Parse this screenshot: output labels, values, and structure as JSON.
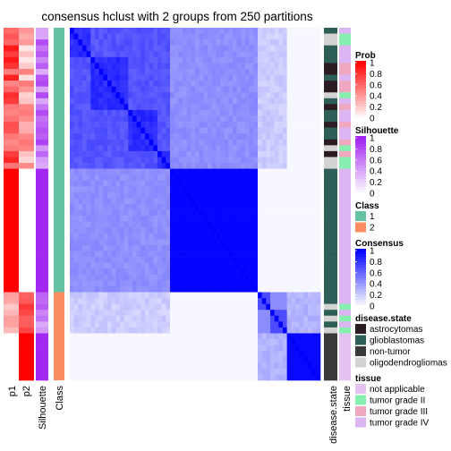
{
  "chart_data": {
    "type": "heatmap",
    "title": "consensus hclust with 2 groups from 250 partitions",
    "columns": [
      "p1",
      "p2",
      "Silhouette",
      "Class",
      "disease.state",
      "tissue"
    ],
    "groups": [
      {
        "class": "1",
        "share_percent": 75
      },
      {
        "class": "2",
        "share_percent": 25
      }
    ],
    "legends": [
      {
        "title": "Prob",
        "type": "gradient",
        "ticks": [
          "1",
          "0.8",
          "0.6",
          "0.4",
          "0.2",
          "0"
        ],
        "colors": [
          "#ff0000",
          "#ffffff"
        ]
      },
      {
        "title": "Silhouette",
        "type": "gradient",
        "ticks": [
          "1",
          "0.8",
          "0.6",
          "0.4",
          "0.2",
          "0"
        ],
        "colors": [
          "#a020f0",
          "#ffffff"
        ]
      },
      {
        "title": "Class",
        "type": "discrete",
        "items": [
          {
            "label": "1",
            "color": "#66c2a5"
          },
          {
            "label": "2",
            "color": "#fc8d62"
          }
        ]
      },
      {
        "title": "Consensus",
        "type": "gradient",
        "ticks": [
          "1",
          "0.8",
          "0.6",
          "0.4",
          "0.2",
          "0"
        ],
        "colors": [
          "#0000ff",
          "#ffffff"
        ]
      },
      {
        "title": "disease.state",
        "type": "discrete",
        "items": [
          {
            "label": "astrocytomas",
            "color": "#2a1c22"
          },
          {
            "label": "glioblastomas",
            "color": "#2e5f56"
          },
          {
            "label": "non-tumor",
            "color": "#3a3a3a"
          },
          {
            "label": "oligodendrogliomas",
            "color": "#d3d3d3"
          }
        ]
      },
      {
        "title": "tissue",
        "type": "discrete",
        "items": [
          {
            "label": "not applicable",
            "color": "#e4c2f0"
          },
          {
            "label": "tumor grade II",
            "color": "#87f0b0"
          },
          {
            "label": "tumor grade III",
            "color": "#f0a8c0"
          },
          {
            "label": "tumor grade IV",
            "color": "#dcb6f2"
          }
        ]
      }
    ]
  }
}
